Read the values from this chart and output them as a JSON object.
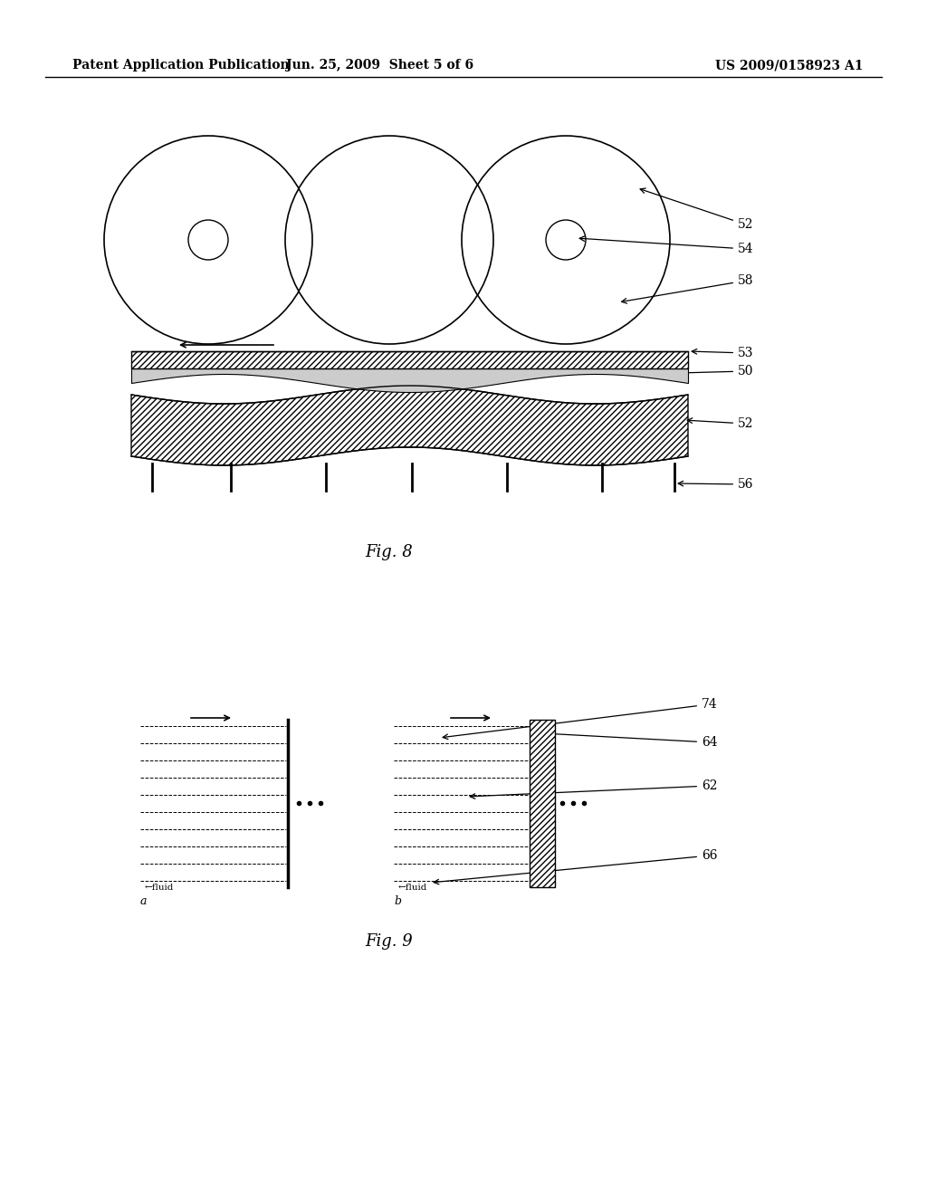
{
  "bg_color": "#ffffff",
  "header_left": "Patent Application Publication",
  "header_mid": "Jun. 25, 2009  Sheet 5 of 6",
  "header_right": "US 2009/0158923 A1",
  "fig8_label": "Fig. 8",
  "fig9_label": "Fig. 9"
}
